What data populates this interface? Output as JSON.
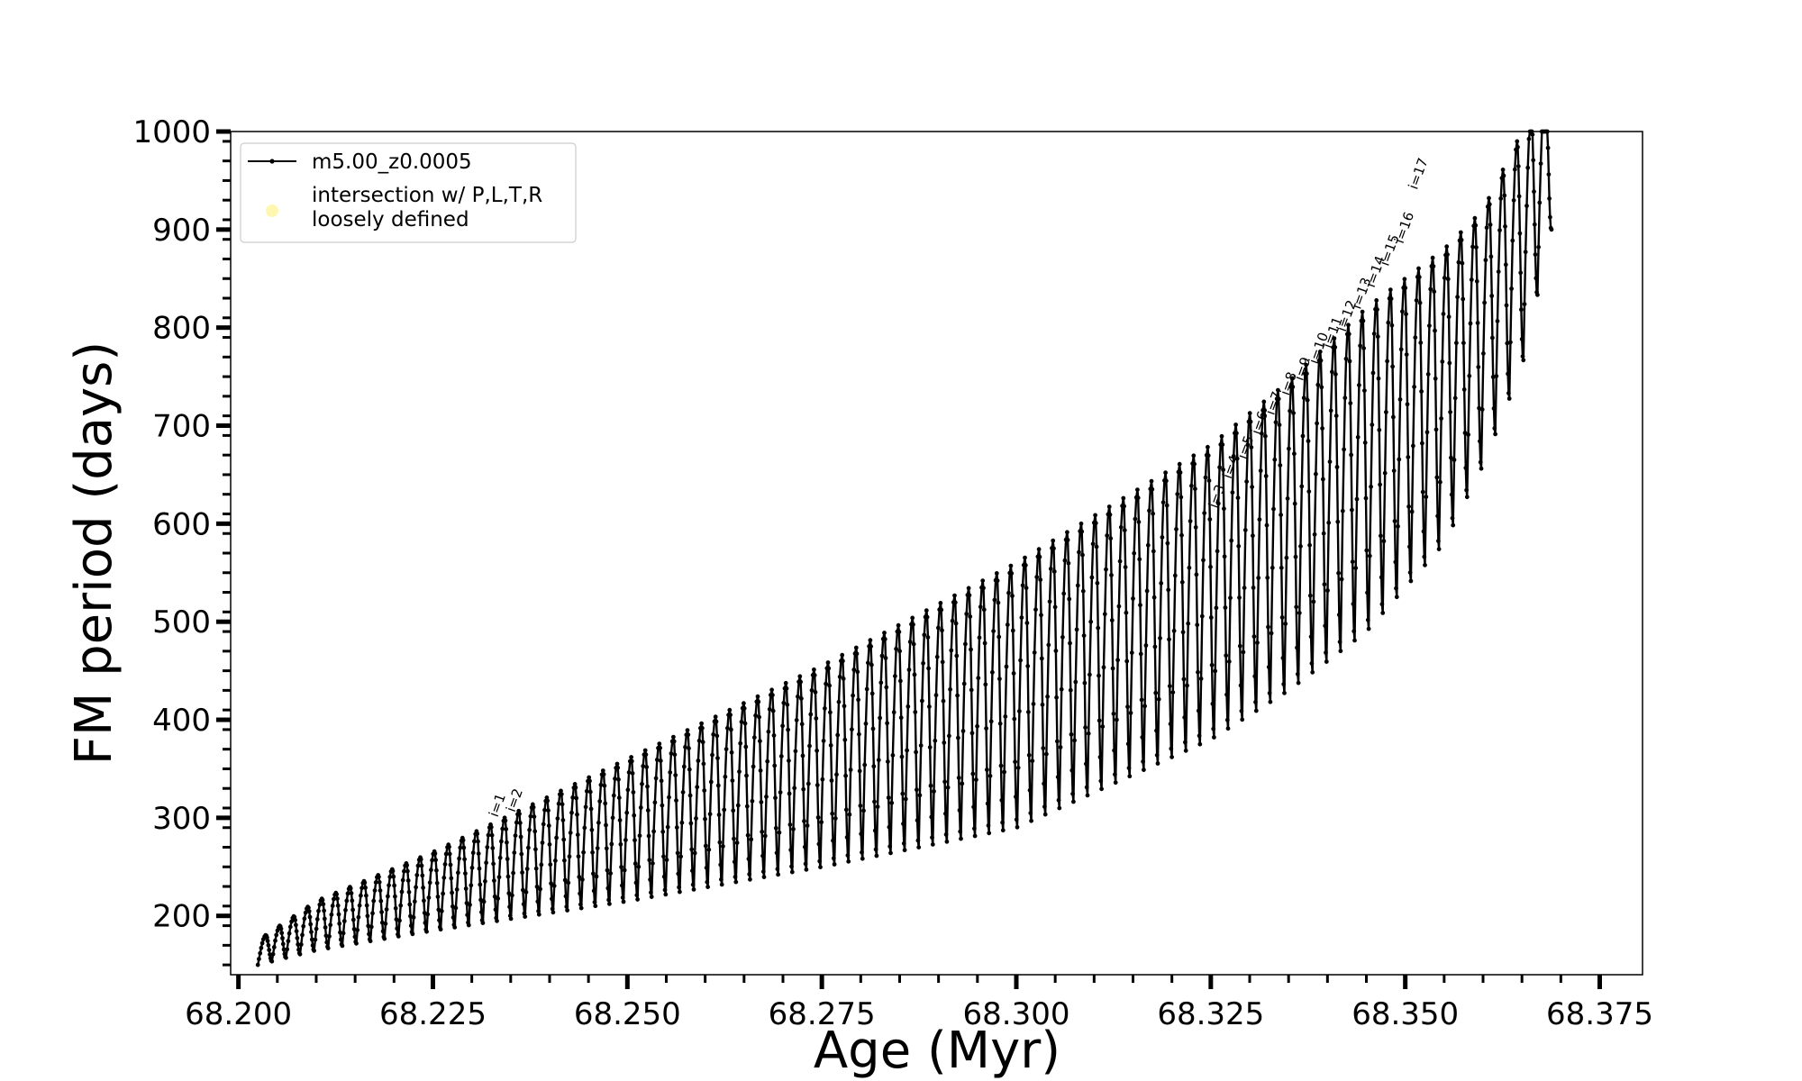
{
  "chart_data": {
    "type": "line",
    "title": "",
    "xlabel": "Age (Myr)",
    "ylabel": "FM period (days)",
    "xlim": [
      68.199,
      68.3805
    ],
    "ylim": [
      140,
      1000
    ],
    "x_ticks": [
      68.2,
      68.225,
      68.25,
      68.275,
      68.3,
      68.325,
      68.35,
      68.375
    ],
    "x_tick_labels": [
      "68.200",
      "68.225",
      "68.250",
      "68.275",
      "68.300",
      "68.325",
      "68.350",
      "68.375"
    ],
    "y_ticks": [
      200,
      300,
      400,
      500,
      600,
      700,
      800,
      900,
      1000
    ],
    "y_tick_labels": [
      "200",
      "300",
      "400",
      "500",
      "600",
      "700",
      "800",
      "900",
      "1000"
    ],
    "grid": false,
    "legend": {
      "position": "top-left",
      "entries": [
        {
          "label": "m5.00_z0.0005",
          "style": "line-with-dots",
          "color": "#000000"
        },
        {
          "label_lines": [
            "intersection w/ P,L,T,R",
            "loosely defined"
          ],
          "style": "marker",
          "color": "#fff7b0"
        }
      ]
    },
    "series": [
      {
        "name": "m5.00_z0.0005",
        "color": "#000000",
        "style": "oscillating line with dot markers",
        "start_age": 68.2025,
        "end_age": 68.3688,
        "approx_cycles": 92,
        "upper_envelope": {
          "x": [
            68.2025,
            68.21,
            68.225,
            68.25,
            68.275,
            68.3,
            68.325,
            68.335,
            68.345,
            68.355,
            68.36,
            68.365
          ],
          "y": [
            175,
            215,
            265,
            360,
            455,
            560,
            680,
            745,
            820,
            880,
            920,
            1000
          ]
        },
        "lower_envelope": {
          "x": [
            68.2025,
            68.21,
            68.225,
            68.25,
            68.275,
            68.3,
            68.325,
            68.335,
            68.345,
            68.355,
            68.36,
            68.365,
            68.3688
          ],
          "y": [
            150,
            165,
            185,
            215,
            250,
            290,
            380,
            430,
            490,
            580,
            660,
            760,
            900
          ]
        }
      }
    ],
    "annotations": [
      {
        "text": "i=1",
        "x": 68.2333,
        "y": 300
      },
      {
        "text": "i=2",
        "x": 68.2355,
        "y": 305
      },
      {
        "text": "i=3",
        "x": 68.3258,
        "y": 615
      },
      {
        "text": "i=4",
        "x": 68.3276,
        "y": 645
      },
      {
        "text": "i=5",
        "x": 68.3295,
        "y": 665
      },
      {
        "text": "i=6",
        "x": 68.3313,
        "y": 690
      },
      {
        "text": "i=7",
        "x": 68.3331,
        "y": 710
      },
      {
        "text": "i=8",
        "x": 68.335,
        "y": 730
      },
      {
        "text": "i=9",
        "x": 68.3368,
        "y": 745
      },
      {
        "text": "i=10",
        "x": 68.3387,
        "y": 762
      },
      {
        "text": "i=11",
        "x": 68.3405,
        "y": 778
      },
      {
        "text": "i=12",
        "x": 68.3423,
        "y": 795
      },
      {
        "text": "i=13",
        "x": 68.3442,
        "y": 818
      },
      {
        "text": "i=14",
        "x": 68.346,
        "y": 840
      },
      {
        "text": "i=15",
        "x": 68.3478,
        "y": 862
      },
      {
        "text": "i=16",
        "x": 68.3497,
        "y": 885
      },
      {
        "text": "i=17",
        "x": 68.3515,
        "y": 940
      }
    ]
  }
}
